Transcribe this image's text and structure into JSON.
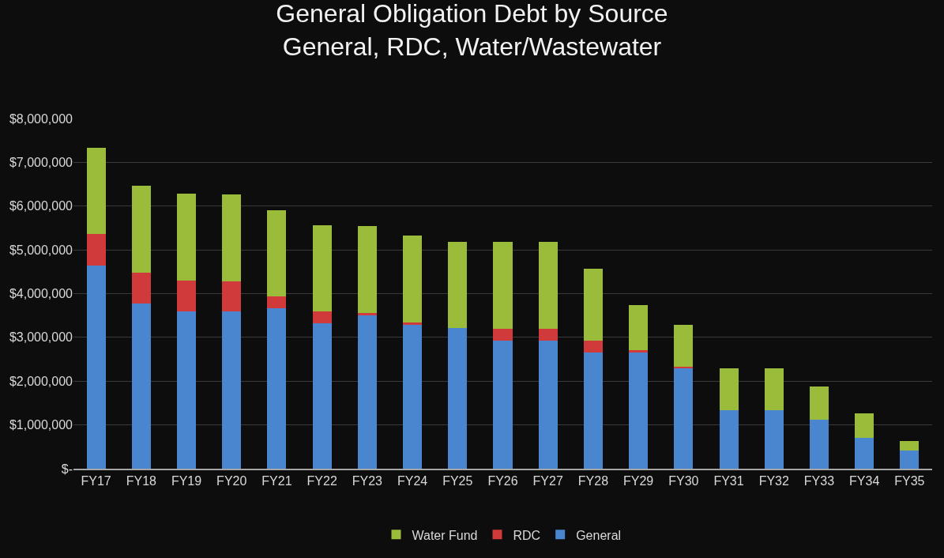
{
  "chart_data": {
    "type": "bar",
    "stacked": true,
    "title": "General Obligation Debt by Source\nGeneral, RDC, Water/Wastewater",
    "categories": [
      "FY17",
      "FY18",
      "FY19",
      "FY20",
      "FY21",
      "FY22",
      "FY23",
      "FY24",
      "FY25",
      "FY26",
      "FY27",
      "FY28",
      "FY29",
      "FY30",
      "FY31",
      "FY32",
      "FY33",
      "FY34",
      "FY35"
    ],
    "series": [
      {
        "name": "General",
        "color": "#4a86d0",
        "values": [
          4650000,
          3780000,
          3590000,
          3590000,
          3660000,
          3320000,
          3500000,
          3280000,
          3220000,
          2930000,
          2930000,
          2660000,
          2660000,
          2300000,
          1330000,
          1330000,
          1120000,
          700000,
          410000
        ]
      },
      {
        "name": "RDC",
        "color": "#d03a3a",
        "values": [
          710000,
          700000,
          700000,
          690000,
          280000,
          280000,
          60000,
          60000,
          0,
          260000,
          260000,
          260000,
          40000,
          30000,
          0,
          0,
          0,
          0,
          0
        ]
      },
      {
        "name": "Water Fund",
        "color": "#9bbb3a",
        "values": [
          1970000,
          1980000,
          1990000,
          1980000,
          1960000,
          1960000,
          1990000,
          1990000,
          1970000,
          2000000,
          2000000,
          1650000,
          1030000,
          960000,
          970000,
          970000,
          750000,
          570000,
          220000
        ]
      }
    ],
    "ylim": [
      0,
      8000000
    ],
    "yticks": [
      {
        "value": 0,
        "label": "$-"
      },
      {
        "value": 1000000,
        "label": "$1,000,000"
      },
      {
        "value": 2000000,
        "label": "$2,000,000"
      },
      {
        "value": 3000000,
        "label": "$3,000,000"
      },
      {
        "value": 4000000,
        "label": "$4,000,000"
      },
      {
        "value": 5000000,
        "label": "$5,000,000"
      },
      {
        "value": 6000000,
        "label": "$6,000,000"
      },
      {
        "value": 7000000,
        "label": "$7,000,000"
      },
      {
        "value": 8000000,
        "label": "$8,000,000"
      }
    ],
    "grid": "y",
    "legend": "bottom"
  }
}
